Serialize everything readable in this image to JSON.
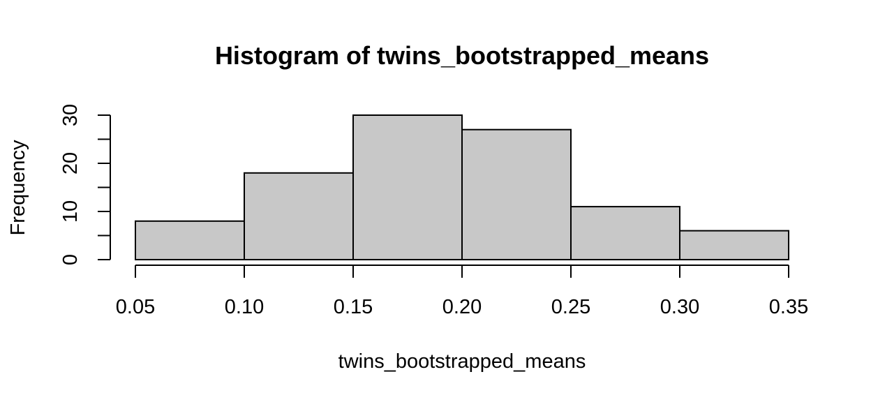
{
  "chart_data": {
    "type": "bar",
    "title": "Histogram of twins_bootstrapped_means",
    "xlabel": "twins_bootstrapped_means",
    "ylabel": "Frequency",
    "bins": [
      {
        "from": 0.05,
        "to": 0.1,
        "count": 8
      },
      {
        "from": 0.1,
        "to": 0.15,
        "count": 18
      },
      {
        "from": 0.15,
        "to": 0.2,
        "count": 30
      },
      {
        "from": 0.2,
        "to": 0.25,
        "count": 27
      },
      {
        "from": 0.25,
        "to": 0.3,
        "count": 11
      },
      {
        "from": 0.3,
        "to": 0.35,
        "count": 6
      }
    ],
    "xlim": [
      0.05,
      0.35
    ],
    "ylim": [
      0,
      30
    ],
    "x_ticks": [
      "0.05",
      "0.10",
      "0.15",
      "0.20",
      "0.25",
      "0.30",
      "0.35"
    ],
    "y_ticks": [
      "0",
      "10",
      "20",
      "30"
    ],
    "y_minor_ticks": [
      5,
      15,
      25
    ],
    "bar_color": "#c8c8c8",
    "grid": false,
    "legend": "none"
  }
}
